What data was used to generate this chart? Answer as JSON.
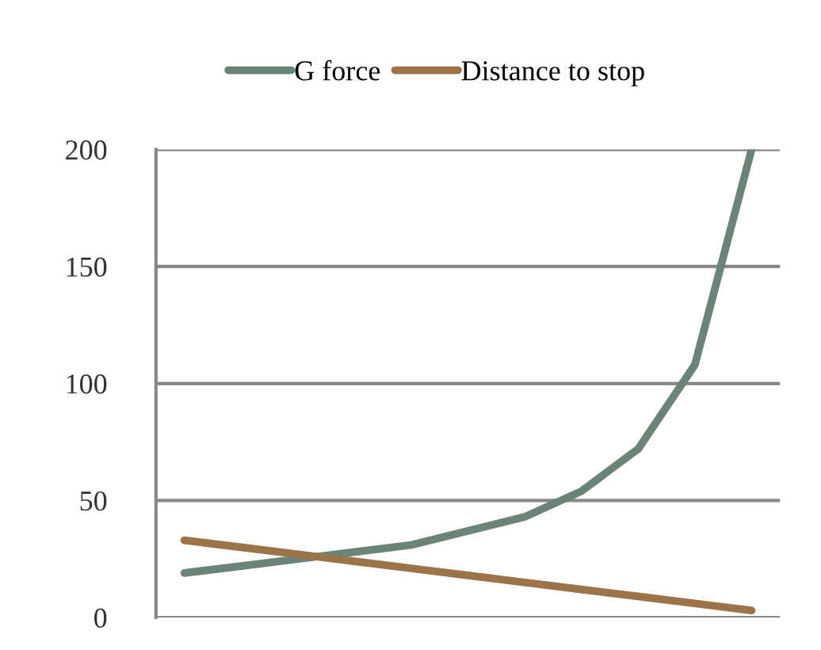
{
  "chart_data": {
    "type": "line",
    "categories": [
      null,
      null,
      null,
      null,
      null,
      null,
      null,
      null,
      null,
      null,
      null
    ],
    "series": [
      {
        "name": "G force",
        "color": "#6b8478",
        "values": [
          19,
          22,
          25,
          28,
          31,
          37,
          43,
          54,
          72,
          108,
          200
        ]
      },
      {
        "name": "Distance to stop",
        "color": "#9c7449",
        "values": [
          33,
          30,
          27,
          24,
          21,
          18,
          15,
          12,
          9,
          6,
          3
        ]
      }
    ],
    "ylim": [
      0,
      200
    ],
    "yticks": [
      0,
      50,
      100,
      150,
      200
    ],
    "grid": "y",
    "legend": "top",
    "marker": "none",
    "line_style": "solid"
  }
}
